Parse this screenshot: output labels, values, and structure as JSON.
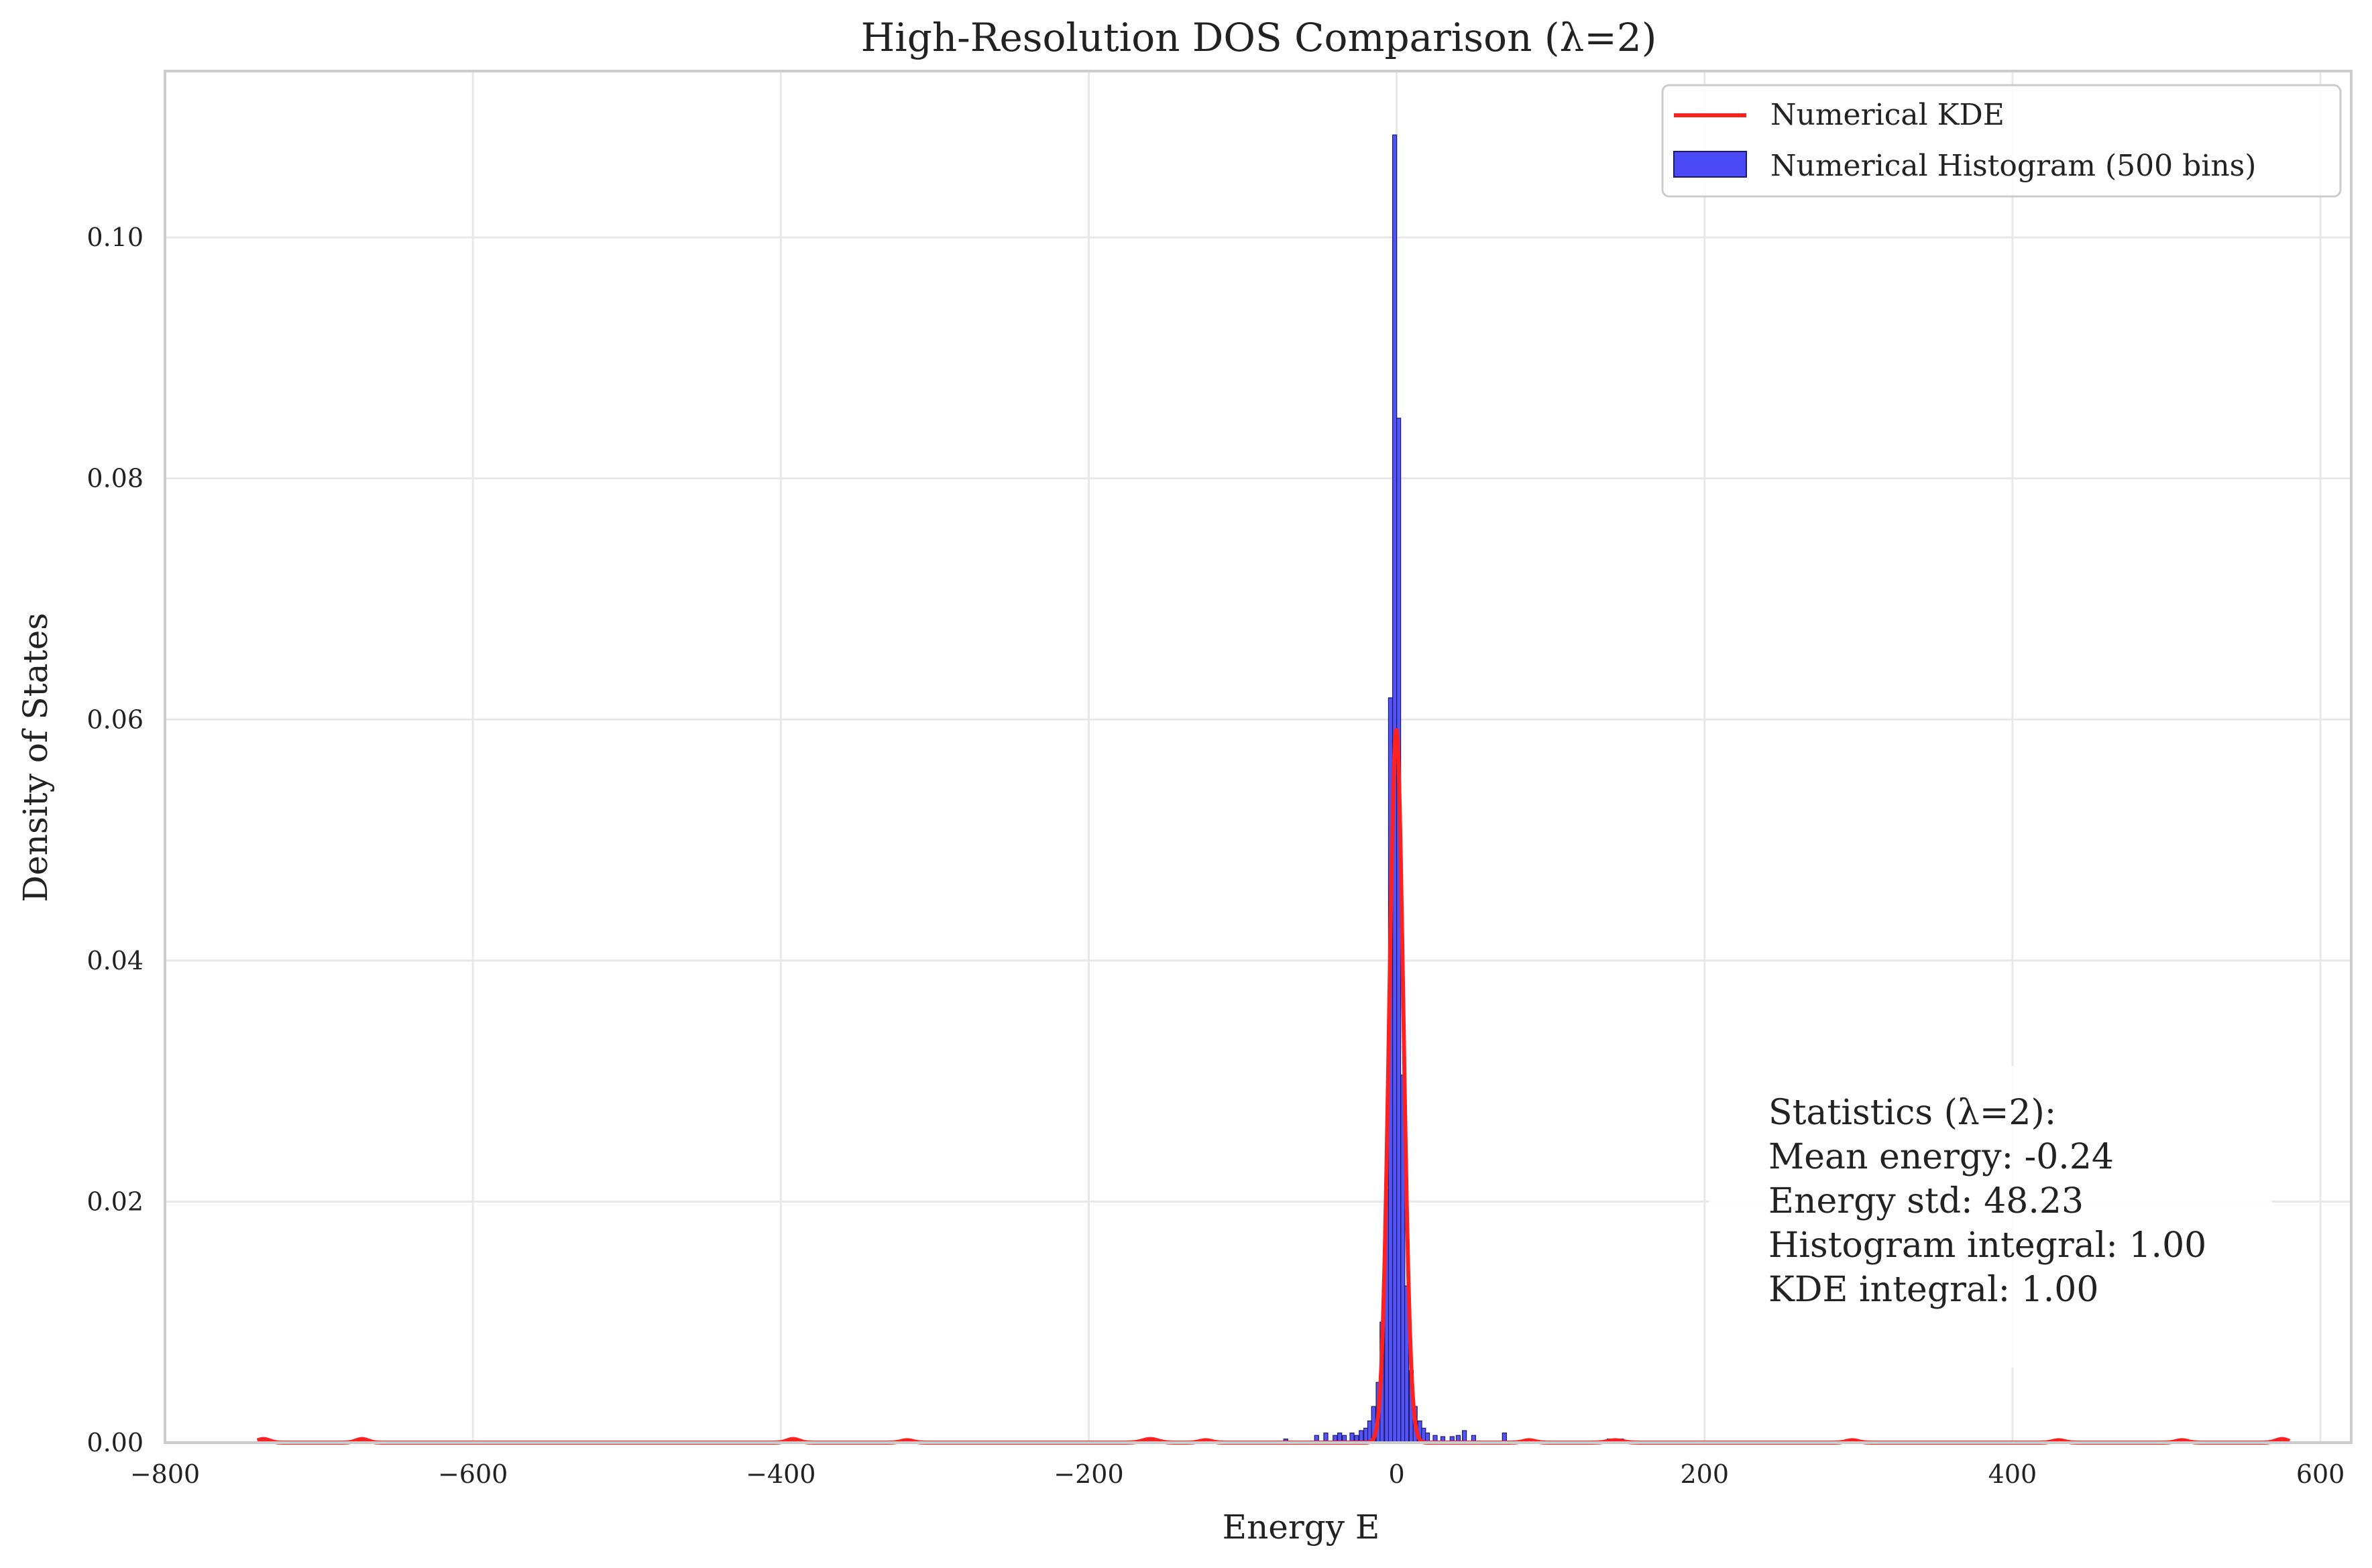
{
  "chart_data": {
    "type": "bar",
    "title": "High-Resolution DOS Comparison (λ=2)",
    "xlabel": "Energy E",
    "ylabel": "Density of States",
    "xlim": [
      -800,
      620
    ],
    "ylim": [
      0,
      0.1138
    ],
    "xticks": [
      -800,
      -600,
      -400,
      -200,
      0,
      200,
      400,
      600
    ],
    "xtick_labels": [
      "−800",
      "−600",
      "−400",
      "−200",
      "0",
      "200",
      "400",
      "600"
    ],
    "yticks": [
      0.0,
      0.02,
      0.04,
      0.06,
      0.08,
      0.1
    ],
    "ytick_labels": [
      "0.00",
      "0.02",
      "0.04",
      "0.06",
      "0.08",
      "0.10"
    ],
    "grid": true,
    "legend_position": "top-right",
    "bin_width": 2.62,
    "series": [
      {
        "name": "Numerical Histogram (500 bins)",
        "kind": "histogram",
        "color": "#4b4bf5",
        "edge_color": "#1a1a6e",
        "bins": [
          {
            "x": -736.1,
            "y": 0.0004
          },
          {
            "x": -672.0,
            "y": 0.0004
          },
          {
            "x": -392.0,
            "y": 0.0004
          },
          {
            "x": -318.0,
            "y": 0.0003
          },
          {
            "x": -160.0,
            "y": 0.0004
          },
          {
            "x": -124.0,
            "y": 0.0003
          },
          {
            "x": -72.0,
            "y": 0.0003
          },
          {
            "x": -52.0,
            "y": 0.0006
          },
          {
            "x": -46.0,
            "y": 0.0008
          },
          {
            "x": -40.0,
            "y": 0.0006
          },
          {
            "x": -37.0,
            "y": 0.0008
          },
          {
            "x": -34.0,
            "y": 0.0006
          },
          {
            "x": -29.0,
            "y": 0.0008
          },
          {
            "x": -26.0,
            "y": 0.0006
          },
          {
            "x": -23.0,
            "y": 0.001
          },
          {
            "x": -20.0,
            "y": 0.0012
          },
          {
            "x": -17.5,
            "y": 0.0018
          },
          {
            "x": -15.0,
            "y": 0.003
          },
          {
            "x": -12.0,
            "y": 0.005
          },
          {
            "x": -9.5,
            "y": 0.01
          },
          {
            "x": -6.5,
            "y": 0.021
          },
          {
            "x": -4.0,
            "y": 0.0618
          },
          {
            "x": -1.3,
            "y": 0.1085
          },
          {
            "x": 1.3,
            "y": 0.085
          },
          {
            "x": 4.0,
            "y": 0.0305
          },
          {
            "x": 6.5,
            "y": 0.013
          },
          {
            "x": 9.5,
            "y": 0.006
          },
          {
            "x": 12.0,
            "y": 0.003
          },
          {
            "x": 15.0,
            "y": 0.0018
          },
          {
            "x": 17.5,
            "y": 0.0012
          },
          {
            "x": 20.0,
            "y": 0.0008
          },
          {
            "x": 25.0,
            "y": 0.0006
          },
          {
            "x": 30.0,
            "y": 0.0005
          },
          {
            "x": 36.0,
            "y": 0.0005
          },
          {
            "x": 40.0,
            "y": 0.0006
          },
          {
            "x": 44.0,
            "y": 0.001
          },
          {
            "x": 50.0,
            "y": 0.0006
          },
          {
            "x": 70.0,
            "y": 0.0008
          },
          {
            "x": 86.0,
            "y": 0.0003
          },
          {
            "x": 138.0,
            "y": 0.0003
          },
          {
            "x": 146.0,
            "y": 0.0003
          },
          {
            "x": 296.0,
            "y": 0.0003
          },
          {
            "x": 430.0,
            "y": 0.0003
          },
          {
            "x": 510.0,
            "y": 0.0003
          },
          {
            "x": 575.0,
            "y": 0.0003
          }
        ]
      },
      {
        "name": "Numerical KDE",
        "kind": "line",
        "color": "#ff2020",
        "peak_x": -0.24,
        "peak_y": 0.0592,
        "width": 4.6,
        "side_bumps": [
          {
            "x": -736,
            "y": 0.0003,
            "w": 4
          },
          {
            "x": -672,
            "y": 0.0003,
            "w": 4
          },
          {
            "x": -392,
            "y": 0.0003,
            "w": 4
          },
          {
            "x": -318,
            "y": 0.0002,
            "w": 4
          },
          {
            "x": -160,
            "y": 0.0003,
            "w": 5
          },
          {
            "x": -124,
            "y": 0.0002,
            "w": 4
          },
          {
            "x": 86,
            "y": 0.0002,
            "w": 4
          },
          {
            "x": 142,
            "y": 0.0002,
            "w": 5
          },
          {
            "x": 296,
            "y": 0.0002,
            "w": 4
          },
          {
            "x": 430,
            "y": 0.0002,
            "w": 4
          },
          {
            "x": 510,
            "y": 0.0002,
            "w": 4
          },
          {
            "x": 575,
            "y": 0.0003,
            "w": 4
          }
        ]
      }
    ],
    "annotation": {
      "lines": [
        "Statistics (λ=2):",
        "Mean energy: -0.24",
        "Energy std: 48.23",
        "Histogram integral: 1.00",
        "KDE integral: 1.00"
      ]
    }
  }
}
